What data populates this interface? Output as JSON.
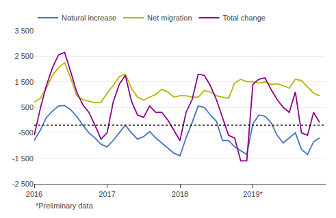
{
  "chart_data": {
    "type": "line",
    "x": [
      2016,
      2016.0833333333333,
      2016.1666666666667,
      2016.25,
      2016.3333333333333,
      2016.4166666666667,
      2016.5,
      2016.5833333333333,
      2016.6666666666667,
      2016.75,
      2016.8333333333333,
      2016.9166666666667,
      2017,
      2017.0833333333333,
      2017.1666666666667,
      2017.25,
      2017.3333333333333,
      2017.4166666666667,
      2017.5,
      2017.5833333333333,
      2017.6666666666667,
      2017.75,
      2017.8333333333333,
      2017.9166666666667,
      2018,
      2018.0833333333333,
      2018.1666666666667,
      2018.25,
      2018.3333333333333,
      2018.4166666666667,
      2018.5,
      2018.5833333333333,
      2018.6666666666667,
      2018.75,
      2018.8333333333333,
      2018.9166666666667,
      2019,
      2019.0833333333333,
      2019.1666666666667,
      2019.25,
      2019.3333333333333,
      2019.4166666666667,
      2019.5,
      2019.5833333333333,
      2019.6666666666667,
      2019.75,
      2019.8333333333333,
      2019.9166666666667
    ],
    "series": [
      {
        "name": "Natural increase",
        "color": "#4472c4",
        "values": [
          -800,
          -400,
          100,
          350,
          550,
          570,
          400,
          150,
          -200,
          -500,
          -700,
          -950,
          -1050,
          -800,
          -500,
          -200,
          -500,
          -750,
          -650,
          -450,
          -700,
          -900,
          -1100,
          -1300,
          -1400,
          -700,
          -100,
          550,
          500,
          200,
          -50,
          -800,
          -800,
          -1050,
          -1200,
          -1350,
          -150,
          200,
          150,
          -100,
          -600,
          -900,
          -700,
          -500,
          -1150,
          -1350,
          -850,
          -700
        ]
      },
      {
        "name": "Net migration",
        "color": "#b5b500",
        "values": [
          700,
          850,
          1250,
          1750,
          2050,
          2250,
          1650,
          950,
          800,
          750,
          680,
          700,
          1050,
          1350,
          1700,
          1800,
          1250,
          900,
          780,
          900,
          1000,
          1200,
          1100,
          900,
          950,
          950,
          900,
          900,
          1150,
          1100,
          950,
          900,
          850,
          1450,
          1600,
          1500,
          1500,
          1450,
          1500,
          1400,
          1420,
          1350,
          1250,
          1600,
          1550,
          1300,
          1050,
          950
        ]
      },
      {
        "name": "Total change",
        "color": "#8b008b",
        "values": [
          -600,
          450,
          1350,
          2050,
          2550,
          2650,
          1900,
          1100,
          600,
          300,
          -200,
          -750,
          -500,
          700,
          1400,
          1750,
          750,
          200,
          100,
          550,
          300,
          300,
          0,
          -400,
          -800,
          300,
          800,
          1800,
          1750,
          1350,
          800,
          100,
          -600,
          -700,
          -1600,
          -1600,
          1400,
          1600,
          1650,
          1200,
          800,
          500,
          300,
          1100,
          -500,
          -600,
          300,
          -100
        ]
      }
    ],
    "xlim": [
      2016,
      2020
    ],
    "xticks": [
      2016,
      2017,
      2018,
      {
        "value": 2019,
        "label": "2019*"
      }
    ],
    "ylim": [
      -2500,
      3500
    ],
    "yticks": [
      {
        "value": -2500,
        "label": "-2 500"
      },
      {
        "value": -1500,
        "label": "-1 500"
      },
      -500,
      500,
      {
        "value": 1500,
        "label": "1 500"
      },
      {
        "value": 2500,
        "label": "2 500"
      },
      {
        "value": 3500,
        "label": "3 500"
      }
    ],
    "hline": {
      "y": -200,
      "color": "#000000",
      "line_style": "dotted"
    },
    "footnote": "*Preliminary data",
    "grid": "y",
    "legend": "top left"
  }
}
